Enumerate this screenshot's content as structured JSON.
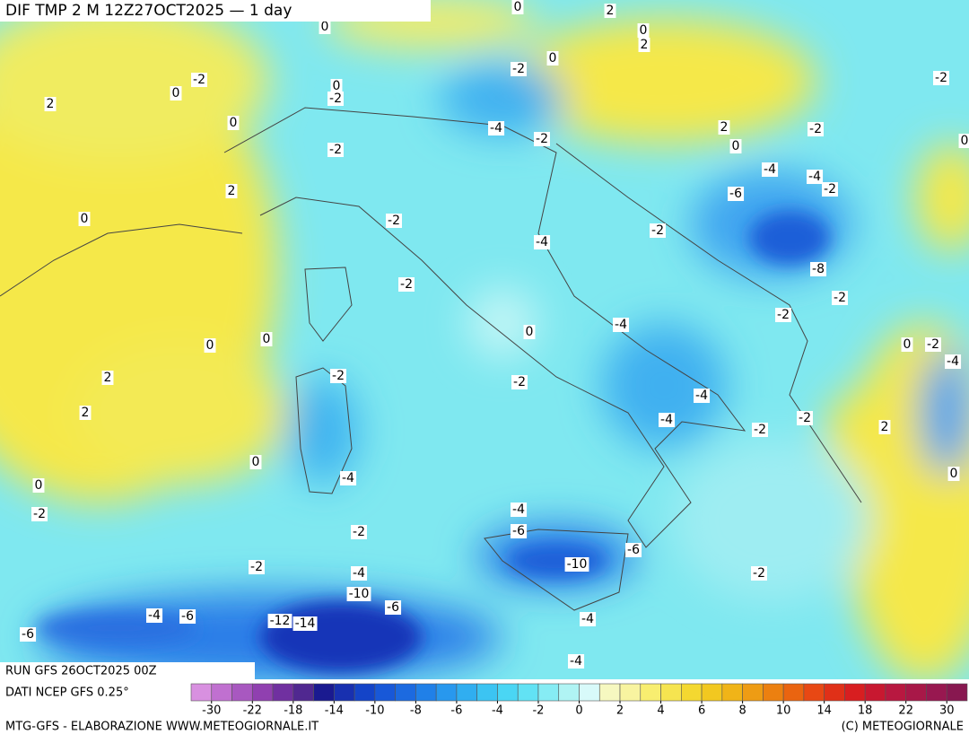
{
  "header": {
    "title": "DIF TMP 2 M 12Z27OCT2025 — 1 day",
    "run": "RUN GFS 26OCT2025 00Z",
    "source": "DATI NCEP GFS 0.25°"
  },
  "footer": {
    "left": "MTG-GFS - ELABORAZIONE WWW.METEOGIORNALE.IT",
    "right": "(C) METEOGIORNALE"
  },
  "colorbar": {
    "ticks": [
      -30,
      -22,
      -18,
      -14,
      -10,
      -8,
      -6,
      -4,
      -2,
      0,
      2,
      4,
      6,
      8,
      10,
      14,
      18,
      22,
      30
    ],
    "colors": [
      "#d890e0",
      "#c070d0",
      "#a858c0",
      "#9040b0",
      "#7030a0",
      "#502890",
      "#1a1a90",
      "#1830b0",
      "#1444c8",
      "#1858d8",
      "#1c6ae0",
      "#2080e8",
      "#2898ee",
      "#30aef0",
      "#3cc4f2",
      "#4ad6f4",
      "#62e2f4",
      "#86ecf4",
      "#b0f4f4",
      "#d8fafa",
      "#f6f8c0",
      "#f8f4a0",
      "#f8ee70",
      "#f6e450",
      "#f4d830",
      "#f2c820",
      "#f0b418",
      "#ee9c14",
      "#ec8010",
      "#ea6410",
      "#e84814",
      "#e03018",
      "#d81e20",
      "#c81830",
      "#b81840",
      "#a81848",
      "#981850",
      "#881850"
    ]
  },
  "map": {
    "contour_labels": [
      "0",
      "2",
      "0",
      "0",
      "2",
      "0",
      "-2",
      "-2",
      "-2",
      "0",
      "0",
      "-2",
      "2",
      "0",
      "-4",
      "-2",
      "2",
      "-2",
      "0",
      "0",
      "-2",
      "-4",
      "-4",
      "-2",
      "-6",
      "2",
      "0",
      "-2",
      "-2",
      "-4",
      "-8",
      "-2",
      "-2",
      "-2",
      "-4",
      "0",
      "0",
      "0",
      "0",
      "-2",
      "-4",
      "2",
      "-2",
      "-2",
      "-4",
      "2",
      "-4",
      "-2",
      "-2",
      "2",
      "0",
      "-4",
      "0",
      "0",
      "-2",
      "-4",
      "-6",
      "-2",
      "-6",
      "-2",
      "-10",
      "-2",
      "-4",
      "-10",
      "-6",
      "-4",
      "-6",
      "-12",
      "-14",
      "-4",
      "-6",
      "-4"
    ]
  }
}
